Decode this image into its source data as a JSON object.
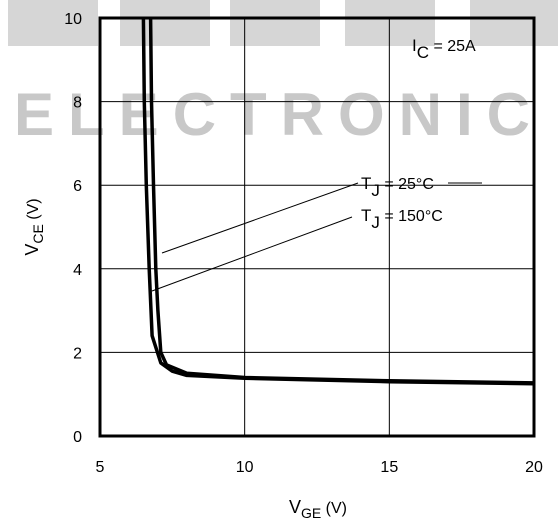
{
  "watermark": "ELECTRONIC",
  "chart_data": {
    "type": "line",
    "title": "",
    "xlabel": {
      "main": "V",
      "sub": "GE",
      "unit": " (V)"
    },
    "ylabel": {
      "main": "V",
      "sub": "CE",
      "unit": " (V)"
    },
    "xlim": [
      5,
      20
    ],
    "ylim": [
      0,
      10
    ],
    "xticks": [
      5,
      10,
      15,
      20
    ],
    "yticks": [
      0,
      2,
      4,
      6,
      8,
      10
    ],
    "grid": true,
    "condition": {
      "main": "I",
      "sub": "C",
      "rest": " = 25A"
    },
    "annotations": [
      {
        "main": "T",
        "sub": "J",
        "rest": " = 25°C",
        "series": 0
      },
      {
        "main": "T",
        "sub": "J",
        "rest": " = 150°C",
        "series": 1
      }
    ],
    "series": [
      {
        "values": [
          [
            6.75,
            10
          ],
          [
            6.78,
            8
          ],
          [
            6.85,
            6
          ],
          [
            6.93,
            4
          ],
          [
            7.0,
            3
          ],
          [
            7.1,
            2
          ],
          [
            7.3,
            1.7
          ],
          [
            8,
            1.5
          ],
          [
            10,
            1.4
          ],
          [
            15,
            1.32
          ],
          [
            20,
            1.27
          ]
        ]
      },
      {
        "values": [
          [
            6.5,
            10
          ],
          [
            6.53,
            8
          ],
          [
            6.6,
            6
          ],
          [
            6.7,
            4
          ],
          [
            6.8,
            2.4
          ],
          [
            7.1,
            1.75
          ],
          [
            7.5,
            1.55
          ],
          [
            8,
            1.45
          ],
          [
            10,
            1.38
          ],
          [
            15,
            1.3
          ],
          [
            20,
            1.25
          ]
        ]
      }
    ]
  }
}
